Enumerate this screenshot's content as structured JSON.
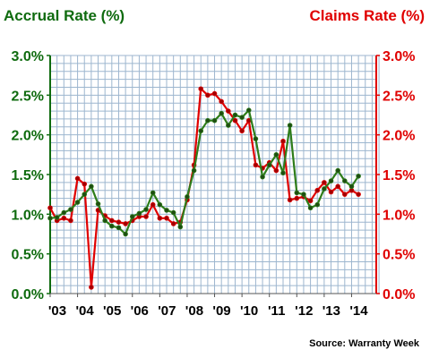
{
  "chart_data": {
    "type": "line",
    "y_left_title": "Accrual Rate (%)",
    "y_right_title": "Claims Rate (%)",
    "ylim": [
      0,
      3.0
    ],
    "y_ticks": [
      "0.0%",
      "0.5%",
      "1.0%",
      "1.5%",
      "2.0%",
      "2.5%",
      "3.0%"
    ],
    "x_ticks": [
      {
        "label": "'03",
        "x": 2003
      },
      {
        "label": "'04",
        "x": 2004
      },
      {
        "label": "'05",
        "x": 2005
      },
      {
        "label": "'06",
        "x": 2006
      },
      {
        "label": "'07",
        "x": 2007
      },
      {
        "label": "'08",
        "x": 2008
      },
      {
        "label": "'09",
        "x": 2009
      },
      {
        "label": "'10",
        "x": 2010
      },
      {
        "label": "'11",
        "x": 2011
      },
      {
        "label": "'12",
        "x": 2012
      },
      {
        "label": "'13",
        "x": 2013
      },
      {
        "label": "'14",
        "x": 2014
      }
    ],
    "xlim": [
      2003,
      2014.9
    ],
    "source": "Source: Warranty Week",
    "grid": true,
    "series": [
      {
        "name": "Accrual Rate (%)",
        "axis": "left",
        "color": "#2e7d1a",
        "marker": "#1e4d12",
        "points": [
          [
            2003.0,
            0.95
          ],
          [
            2003.25,
            0.96
          ],
          [
            2003.5,
            1.02
          ],
          [
            2003.75,
            1.06
          ],
          [
            2004.0,
            1.15
          ],
          [
            2004.25,
            1.25
          ],
          [
            2004.5,
            1.35
          ],
          [
            2004.75,
            1.13
          ],
          [
            2005.0,
            0.92
          ],
          [
            2005.25,
            0.85
          ],
          [
            2005.5,
            0.83
          ],
          [
            2005.75,
            0.75
          ],
          [
            2006.0,
            0.97
          ],
          [
            2006.25,
            1.01
          ],
          [
            2006.5,
            1.06
          ],
          [
            2006.75,
            1.27
          ],
          [
            2007.0,
            1.12
          ],
          [
            2007.25,
            1.05
          ],
          [
            2007.5,
            1.02
          ],
          [
            2007.75,
            0.84
          ],
          [
            2008.0,
            1.22
          ],
          [
            2008.25,
            1.55
          ],
          [
            2008.5,
            2.05
          ],
          [
            2008.75,
            2.18
          ],
          [
            2009.0,
            2.18
          ],
          [
            2009.25,
            2.27
          ],
          [
            2009.5,
            2.12
          ],
          [
            2009.75,
            2.25
          ],
          [
            2010.0,
            2.22
          ],
          [
            2010.25,
            2.31
          ],
          [
            2010.5,
            1.95
          ],
          [
            2010.75,
            1.47
          ],
          [
            2011.0,
            1.62
          ],
          [
            2011.25,
            1.75
          ],
          [
            2011.5,
            1.52
          ],
          [
            2011.75,
            2.12
          ],
          [
            2012.0,
            1.27
          ],
          [
            2012.25,
            1.25
          ],
          [
            2012.5,
            1.08
          ],
          [
            2012.75,
            1.12
          ],
          [
            2013.0,
            1.32
          ],
          [
            2013.25,
            1.42
          ],
          [
            2013.5,
            1.55
          ],
          [
            2013.75,
            1.42
          ],
          [
            2014.0,
            1.35
          ],
          [
            2014.25,
            1.48
          ]
        ]
      },
      {
        "name": "Claims Rate (%)",
        "axis": "right",
        "color": "#e00000",
        "marker": "#a00000",
        "points": [
          [
            2003.0,
            1.08
          ],
          [
            2003.25,
            0.92
          ],
          [
            2003.5,
            0.95
          ],
          [
            2003.75,
            0.92
          ],
          [
            2004.0,
            1.45
          ],
          [
            2004.25,
            1.38
          ],
          [
            2004.5,
            0.08
          ],
          [
            2004.75,
            1.05
          ],
          [
            2005.0,
            0.98
          ],
          [
            2005.25,
            0.92
          ],
          [
            2005.5,
            0.9
          ],
          [
            2005.75,
            0.88
          ],
          [
            2006.0,
            0.92
          ],
          [
            2006.25,
            0.97
          ],
          [
            2006.5,
            0.97
          ],
          [
            2006.75,
            1.12
          ],
          [
            2007.0,
            0.95
          ],
          [
            2007.25,
            0.95
          ],
          [
            2007.5,
            0.88
          ],
          [
            2007.75,
            0.9
          ],
          [
            2008.0,
            1.18
          ],
          [
            2008.25,
            1.62
          ],
          [
            2008.5,
            2.58
          ],
          [
            2008.75,
            2.5
          ],
          [
            2009.0,
            2.52
          ],
          [
            2009.25,
            2.42
          ],
          [
            2009.5,
            2.3
          ],
          [
            2009.75,
            2.18
          ],
          [
            2010.0,
            2.05
          ],
          [
            2010.25,
            2.18
          ],
          [
            2010.5,
            1.62
          ],
          [
            2010.75,
            1.58
          ],
          [
            2011.0,
            1.65
          ],
          [
            2011.25,
            1.55
          ],
          [
            2011.5,
            1.92
          ],
          [
            2011.75,
            1.18
          ],
          [
            2012.0,
            1.2
          ],
          [
            2012.25,
            1.22
          ],
          [
            2012.5,
            1.17
          ],
          [
            2012.75,
            1.3
          ],
          [
            2013.0,
            1.4
          ],
          [
            2013.25,
            1.28
          ],
          [
            2013.5,
            1.35
          ],
          [
            2013.75,
            1.25
          ],
          [
            2014.0,
            1.3
          ],
          [
            2014.25,
            1.25
          ]
        ]
      }
    ]
  }
}
